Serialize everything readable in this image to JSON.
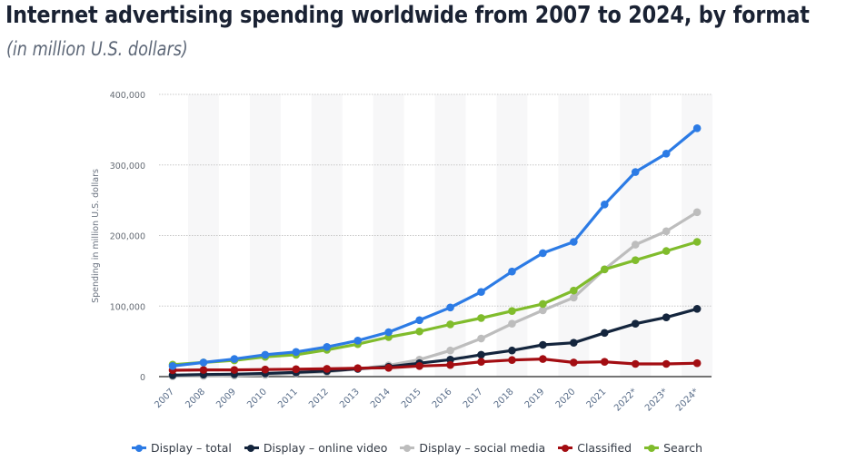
{
  "header": {
    "title": "Internet advertising spending worldwide from 2007 to 2024, by format",
    "subtitle": "(in million U.S. dollars)"
  },
  "chart_data": {
    "type": "line",
    "title": "Internet advertising spending worldwide from 2007 to 2024, by format",
    "subtitle": "(in million U.S. dollars)",
    "xlabel": "",
    "ylabel": "Spending in million U.S. dollars",
    "ylim": [
      0,
      400000
    ],
    "yticks": [
      0,
      100000,
      200000,
      300000,
      400000
    ],
    "ytick_labels": [
      "0",
      "100,000",
      "200,000",
      "300,000",
      "400,000"
    ],
    "grid": true,
    "legend_position": "bottom",
    "categories": [
      "2007",
      "2008",
      "2009",
      "2010",
      "2011",
      "2012",
      "2013",
      "2014",
      "2015",
      "2016",
      "2017",
      "2018",
      "2019",
      "2020",
      "2021",
      "2022*",
      "2023*",
      "2024*"
    ],
    "series": [
      {
        "name": "Display - total",
        "color": "#2c7be5",
        "values": [
          15000,
          20000,
          25000,
          31000,
          35000,
          42000,
          51000,
          63000,
          80000,
          98000,
          120000,
          149000,
          175000,
          191000,
          244000,
          290000,
          316000,
          352000
        ]
      },
      {
        "name": "Display - online video",
        "color": "#14253d",
        "values": [
          2000,
          3000,
          3500,
          4500,
          6000,
          8000,
          11000,
          14000,
          19000,
          24000,
          31000,
          37000,
          45000,
          48000,
          62000,
          75000,
          84000,
          96000
        ]
      },
      {
        "name": "Display - social media",
        "color": "#bdbdbd",
        "values": [
          500,
          1000,
          1500,
          2500,
          5000,
          6500,
          11000,
          16000,
          24000,
          37000,
          54000,
          75000,
          94000,
          112000,
          152000,
          187000,
          206000,
          233000
        ]
      },
      {
        "name": "Classified",
        "color": "#a30d12",
        "values": [
          9000,
          9500,
          9500,
          10000,
          10500,
          11000,
          12000,
          12500,
          15000,
          16500,
          21000,
          23500,
          25000,
          20000,
          21000,
          18000,
          18000,
          19000
        ]
      },
      {
        "name": "Search",
        "color": "#80bc2c",
        "values": [
          17000,
          20000,
          23000,
          28000,
          31000,
          38000,
          46000,
          56000,
          64000,
          74000,
          83000,
          93000,
          103000,
          122000,
          152000,
          165000,
          178000,
          191000
        ]
      }
    ]
  },
  "legend": {
    "items": [
      {
        "label": "Display – total",
        "color": "#2c7be5"
      },
      {
        "label": "Display – online video",
        "color": "#14253d"
      },
      {
        "label": "Display – social media",
        "color": "#bdbdbd"
      },
      {
        "label": "Classified",
        "color": "#a30d12"
      },
      {
        "label": "Search",
        "color": "#80bc2c"
      }
    ]
  }
}
